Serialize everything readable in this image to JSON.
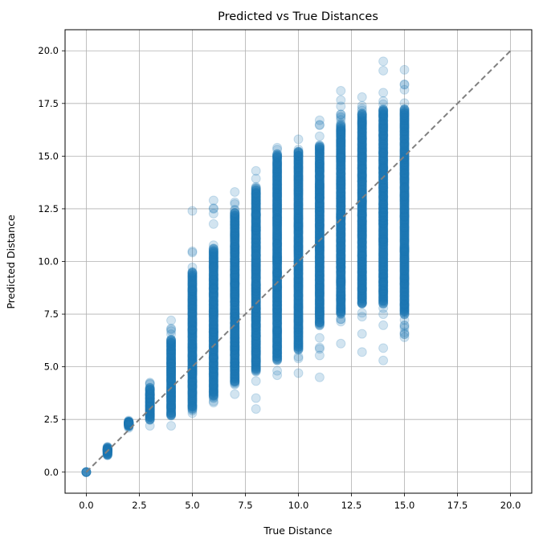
{
  "chart_data": {
    "type": "scatter",
    "title": "Predicted vs True Distances",
    "xlabel": "True Distance",
    "ylabel": "Predicted Distance",
    "xlim": [
      -1,
      21
    ],
    "ylim": [
      -1,
      21
    ],
    "grid": true,
    "x_ticks": [
      "0.0",
      "2.5",
      "5.0",
      "7.5",
      "10.0",
      "12.5",
      "15.0",
      "17.5",
      "20.0"
    ],
    "y_ticks": [
      "0.0",
      "2.5",
      "5.0",
      "7.5",
      "10.0",
      "12.5",
      "15.0",
      "17.5",
      "20.0"
    ],
    "point_color": "#1f77b4",
    "point_alpha": 0.2,
    "reference_line": {
      "x": [
        0,
        20
      ],
      "y": [
        0,
        20
      ],
      "style": "dashed",
      "color": "#808080"
    },
    "groups": [
      {
        "x": 0,
        "y_min": 0.0,
        "y_max": 0.0,
        "y_core_min": 0.0,
        "y_core_max": 0.0
      },
      {
        "x": 1,
        "y_min": 0.8,
        "y_max": 1.2,
        "y_core_min": 0.85,
        "y_core_max": 1.15
      },
      {
        "x": 2,
        "y_min": 2.1,
        "y_max": 2.45,
        "y_core_min": 2.2,
        "y_core_max": 2.4
      },
      {
        "x": 3,
        "y_min": 2.2,
        "y_max": 4.25,
        "y_core_min": 2.5,
        "y_core_max": 4.0
      },
      {
        "x": 4,
        "y_min": 2.2,
        "y_max": 7.2,
        "y_core_min": 2.7,
        "y_core_max": 6.3
      },
      {
        "x": 5,
        "y_min": 2.8,
        "y_max": 12.4,
        "y_core_min": 3.0,
        "y_core_max": 9.5
      },
      {
        "x": 6,
        "y_min": 3.3,
        "y_max": 12.9,
        "y_core_min": 3.6,
        "y_core_max": 10.6
      },
      {
        "x": 7,
        "y_min": 3.7,
        "y_max": 13.3,
        "y_core_min": 4.2,
        "y_core_max": 12.3
      },
      {
        "x": 8,
        "y_min": 3.0,
        "y_max": 14.3,
        "y_core_min": 4.8,
        "y_core_max": 13.5
      },
      {
        "x": 9,
        "y_min": 4.6,
        "y_max": 15.4,
        "y_core_min": 5.3,
        "y_core_max": 15.1
      },
      {
        "x": 10,
        "y_min": 4.7,
        "y_max": 15.8,
        "y_core_min": 5.8,
        "y_core_max": 15.2
      },
      {
        "x": 11,
        "y_min": 4.5,
        "y_max": 16.7,
        "y_core_min": 7.0,
        "y_core_max": 15.5
      },
      {
        "x": 12,
        "y_min": 6.1,
        "y_max": 18.1,
        "y_core_min": 7.5,
        "y_core_max": 16.5
      },
      {
        "x": 13,
        "y_min": 5.7,
        "y_max": 17.8,
        "y_core_min": 8.0,
        "y_core_max": 17.0
      },
      {
        "x": 14,
        "y_min": 5.3,
        "y_max": 19.5,
        "y_core_min": 8.0,
        "y_core_max": 17.2
      },
      {
        "x": 15,
        "y_min": 6.4,
        "y_max": 19.1,
        "y_core_min": 7.5,
        "y_core_max": 17.2
      }
    ]
  }
}
